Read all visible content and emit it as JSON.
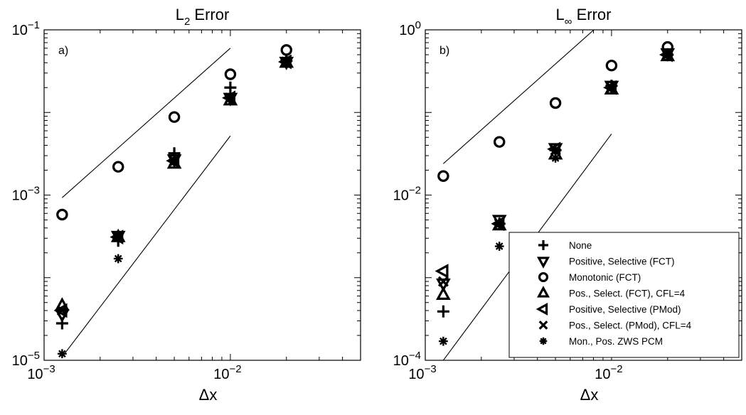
{
  "chart_data": [
    {
      "type": "scatter",
      "panel_label": "a)",
      "title": "L",
      "title_sub": "2",
      "title_rest": " Error",
      "xlabel": "Δx",
      "x_scale": "log",
      "y_scale": "log",
      "xlim": [
        0.001,
        0.05
      ],
      "ylim": [
        1e-05,
        0.1
      ],
      "x_ticks": [
        {
          "v": 0.001,
          "base": "10",
          "exp": "−3"
        },
        {
          "v": 0.01,
          "base": "10",
          "exp": "−2"
        }
      ],
      "y_ticks": [
        {
          "v": 0.1,
          "base": "10",
          "exp": "−1"
        },
        {
          "v": 0.001,
          "base": "10",
          "exp": "−3"
        },
        {
          "v": 1e-05,
          "base": "10",
          "exp": "−5"
        }
      ],
      "reference_lines": [
        {
          "x": [
            0.00125,
            0.01
          ],
          "y": [
            0.00093,
            0.06
          ]
        },
        {
          "x": [
            0.00125,
            0.01
          ],
          "y": [
            1.1e-05,
            0.0052
          ]
        }
      ],
      "series": [
        {
          "name": "None",
          "marker": "plus",
          "x": [
            0.00125,
            0.0025,
            0.005,
            0.01,
            0.02
          ],
          "y": [
            2.8e-05,
            0.00028,
            0.0032,
            0.02,
            0.042
          ]
        },
        {
          "name": "Positive, Selective (FCT)",
          "marker": "triangle-down",
          "x": [
            0.00125,
            0.0025,
            0.005,
            0.01,
            0.02
          ],
          "y": [
            3.6e-05,
            0.00032,
            0.0027,
            0.015,
            0.041
          ]
        },
        {
          "name": "Monotonic (FCT)",
          "marker": "circle",
          "x": [
            0.00125,
            0.0025,
            0.005,
            0.01,
            0.02
          ],
          "y": [
            0.00058,
            0.0022,
            0.0088,
            0.029,
            0.057
          ]
        },
        {
          "name": "Pos., Select. (FCT), CFL=4",
          "marker": "triangle-up",
          "x": [
            0.00125,
            0.0025,
            0.005,
            0.01,
            0.02
          ],
          "y": [
            4.6e-05,
            0.00031,
            0.0024,
            0.014,
            0.04
          ]
        },
        {
          "name": "Positive, Selective (PMod)",
          "marker": "triangle-left",
          "x": [
            0.00125,
            0.0025,
            0.005,
            0.01,
            0.02
          ],
          "y": [
            4e-05,
            0.00031,
            0.0026,
            0.015,
            0.041
          ]
        },
        {
          "name": "Pos., Select. (PMod), CFL=4",
          "marker": "x",
          "x": [
            0.00125,
            0.0025,
            0.005,
            0.01,
            0.02
          ],
          "y": [
            4e-05,
            0.00031,
            0.0026,
            0.015,
            0.041
          ]
        },
        {
          "name": "Mon., Pos. ZWS PCM",
          "marker": "asterisk",
          "x": [
            0.00125,
            0.0025,
            0.005,
            0.01,
            0.02
          ],
          "y": [
            1.2e-05,
            0.00017,
            0.0025,
            0.015,
            0.041
          ]
        }
      ]
    },
    {
      "type": "scatter",
      "panel_label": "b)",
      "title": "L",
      "title_sub": "∞",
      "title_rest": " Error",
      "xlabel": "Δx",
      "x_scale": "log",
      "y_scale": "log",
      "xlim": [
        0.001,
        0.05
      ],
      "ylim": [
        0.0001,
        1
      ],
      "x_ticks": [
        {
          "v": 0.001,
          "base": "10",
          "exp": "−3"
        },
        {
          "v": 0.01,
          "base": "10",
          "exp": "−2"
        }
      ],
      "y_ticks": [
        {
          "v": 1,
          "base": "10",
          "exp": "0"
        },
        {
          "v": 0.01,
          "base": "10",
          "exp": "−2"
        },
        {
          "v": 0.0001,
          "base": "10",
          "exp": "−4"
        }
      ],
      "reference_lines": [
        {
          "x": [
            0.00125,
            0.01
          ],
          "y": [
            0.024,
            1.55
          ]
        },
        {
          "x": [
            0.00125,
            0.01
          ],
          "y": [
            0.0001,
            0.055
          ]
        }
      ],
      "series": [
        {
          "name": "None",
          "marker": "plus",
          "x": [
            0.00125,
            0.0025,
            0.005,
            0.01,
            0.02
          ],
          "y": [
            0.00039,
            0.0045,
            0.035,
            0.21,
            0.5
          ]
        },
        {
          "name": "Positive, Selective (FCT)",
          "marker": "triangle-down",
          "x": [
            0.00125,
            0.0025,
            0.005,
            0.01,
            0.02
          ],
          "y": [
            0.00085,
            0.005,
            0.037,
            0.21,
            0.52
          ]
        },
        {
          "name": "Monotonic (FCT)",
          "marker": "circle",
          "x": [
            0.00125,
            0.0025,
            0.005,
            0.01,
            0.02
          ],
          "y": [
            0.017,
            0.044,
            0.13,
            0.37,
            0.62
          ]
        },
        {
          "name": "Pos., Select. (FCT), CFL=4",
          "marker": "triangle-up",
          "x": [
            0.00125,
            0.0025,
            0.005,
            0.01,
            0.02
          ],
          "y": [
            0.00062,
            0.0043,
            0.031,
            0.19,
            0.48
          ]
        },
        {
          "name": "Positive, Selective (PMod)",
          "marker": "triangle-left",
          "x": [
            0.00125,
            0.0025,
            0.005,
            0.01,
            0.02
          ],
          "y": [
            0.0012,
            0.0045,
            0.036,
            0.2,
            0.5
          ]
        },
        {
          "name": "Pos., Select. (PMod), CFL=4",
          "marker": "x",
          "x": [
            0.00125,
            0.0025,
            0.005,
            0.01,
            0.02
          ],
          "y": [
            0.0009,
            0.0045,
            0.035,
            0.2,
            0.5
          ]
        },
        {
          "name": "Mon., Pos. ZWS PCM",
          "marker": "asterisk",
          "x": [
            0.00125,
            0.0025,
            0.005,
            0.01,
            0.02
          ],
          "y": [
            0.00017,
            0.0024,
            0.028,
            0.2,
            0.5
          ]
        }
      ],
      "legend": {
        "placement": "bottom-right",
        "entries": [
          {
            "marker": "plus",
            "label": "None"
          },
          {
            "marker": "triangle-down",
            "label": "Positive, Selective (FCT)"
          },
          {
            "marker": "circle",
            "label": "Monotonic (FCT)"
          },
          {
            "marker": "triangle-up",
            "label": "Pos., Select. (FCT), CFL=4"
          },
          {
            "marker": "triangle-left",
            "label": "Positive, Selective (PMod)"
          },
          {
            "marker": "x",
            "label": "Pos., Select. (PMod), CFL=4"
          },
          {
            "marker": "asterisk",
            "label": "Mon., Pos. ZWS PCM"
          }
        ]
      }
    }
  ]
}
